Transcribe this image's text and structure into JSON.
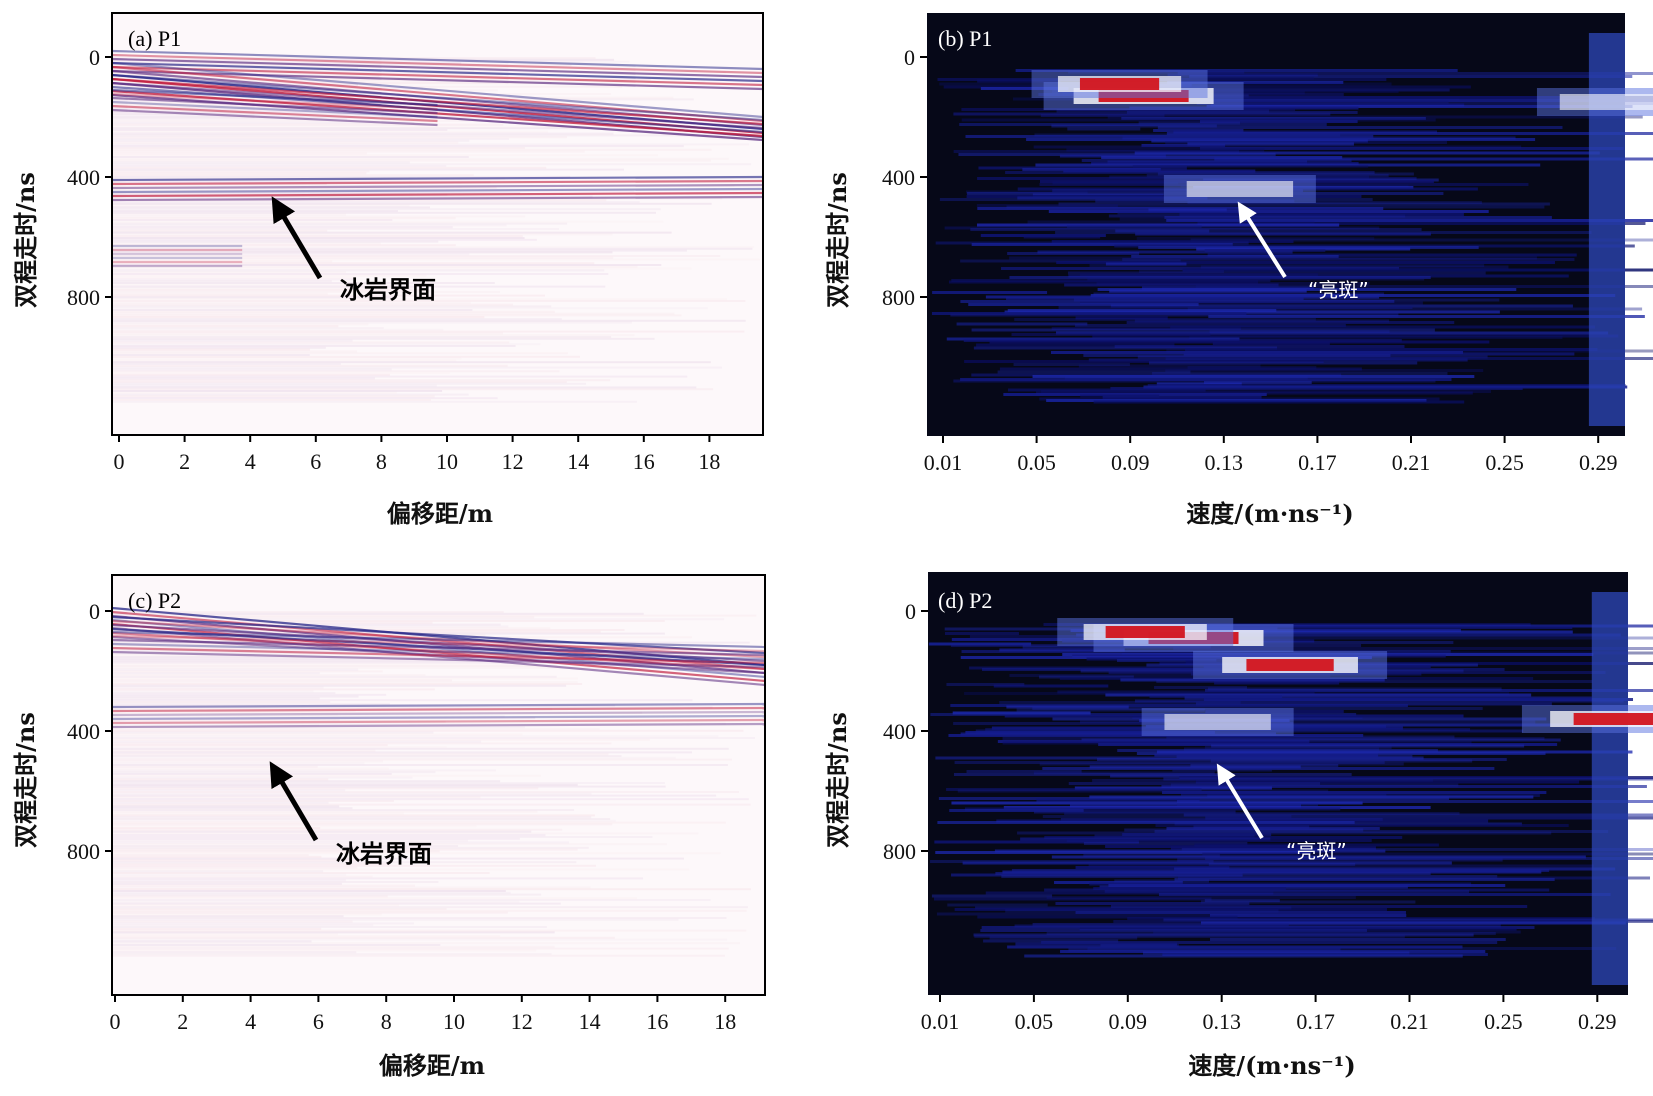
{
  "chart_data": [
    {
      "panel": "a",
      "type": "heatmap",
      "title": "(a) P1",
      "xlabel": "偏移距/m",
      "ylabel": "双程走时/ns",
      "xticks": [
        "0",
        "2",
        "4",
        "6",
        "8",
        "10",
        "12",
        "14",
        "16",
        "18"
      ],
      "yticks": [
        "0",
        "400",
        "800"
      ],
      "xlim": [
        0,
        20
      ],
      "ylim": [
        0,
        1200
      ],
      "colormap": "white-red-blue",
      "annotation": "冰岩界面",
      "reflectors": [
        {
          "x0": 0,
          "t0": 20,
          "x1": 20,
          "t1": 80,
          "strength": 0.9
        },
        {
          "x0": 0,
          "t0": 60,
          "x1": 20,
          "t1": 240,
          "strength": 1.0
        },
        {
          "x0": 0,
          "t0": 100,
          "x1": 20,
          "t1": 250,
          "strength": 0.9
        },
        {
          "x0": 0,
          "t0": 150,
          "x1": 10,
          "t1": 200,
          "strength": 0.7
        },
        {
          "x0": 0,
          "t0": 450,
          "x1": 20,
          "t1": 440,
          "strength": 0.8
        },
        {
          "x0": 0,
          "t0": 670,
          "x1": 4,
          "t1": 670,
          "strength": 0.4
        }
      ]
    },
    {
      "panel": "b",
      "type": "heatmap",
      "title": "(b) P1",
      "xlabel": "速度/(m·ns⁻¹)",
      "ylabel": "双程走时/ns",
      "xticks": [
        "0.01",
        "0.05",
        "0.09",
        "0.13",
        "0.17",
        "0.21",
        "0.25",
        "0.29"
      ],
      "yticks": [
        "0",
        "400",
        "800"
      ],
      "xlim": [
        0.01,
        0.3
      ],
      "ylim": [
        0,
        1200
      ],
      "colormap": "black-blue-white-red",
      "annotation": "“亮斑”",
      "bright_spots": [
        {
          "v": 0.1,
          "t": 130,
          "level": 1.0
        },
        {
          "v": 0.09,
          "t": 90,
          "level": 0.8
        },
        {
          "v": 0.14,
          "t": 440,
          "level": 0.6
        },
        {
          "v": 0.295,
          "t": 150,
          "level": 0.6
        }
      ]
    },
    {
      "panel": "c",
      "type": "heatmap",
      "title": "(c) P2",
      "xlabel": "偏移距/m",
      "ylabel": "双程走时/ns",
      "xticks": [
        "0",
        "2",
        "4",
        "6",
        "8",
        "10",
        "12",
        "14",
        "16",
        "18"
      ],
      "yticks": [
        "0",
        "400",
        "800"
      ],
      "xlim": [
        0,
        19
      ],
      "ylim": [
        0,
        1000
      ],
      "colormap": "white-red-blue",
      "annotation": "冰岩界面",
      "reflectors": [
        {
          "x0": 0,
          "t0": 30,
          "x1": 19,
          "t1": 220,
          "strength": 1.0
        },
        {
          "x0": 0,
          "t0": 60,
          "x1": 19,
          "t1": 180,
          "strength": 0.9
        },
        {
          "x0": 0,
          "t0": 110,
          "x1": 19,
          "t1": 160,
          "strength": 0.7
        },
        {
          "x0": 0,
          "t0": 360,
          "x1": 19,
          "t1": 350,
          "strength": 0.6
        }
      ]
    },
    {
      "panel": "d",
      "type": "heatmap",
      "title": "(d) P2",
      "xlabel": "速度/(m·ns⁻¹)",
      "ylabel": "双程走时/ns",
      "xticks": [
        "0.01",
        "0.05",
        "0.09",
        "0.13",
        "0.17",
        "0.21",
        "0.25",
        "0.29"
      ],
      "yticks": [
        "0",
        "400",
        "800"
      ],
      "xlim": [
        0.01,
        0.3
      ],
      "ylim": [
        0,
        1000
      ],
      "colormap": "black-blue-white-red",
      "annotation": "“亮斑”",
      "bright_spots": [
        {
          "v": 0.12,
          "t": 90,
          "level": 1.0
        },
        {
          "v": 0.16,
          "t": 180,
          "level": 0.95
        },
        {
          "v": 0.1,
          "t": 70,
          "level": 0.8
        },
        {
          "v": 0.13,
          "t": 370,
          "level": 0.6
        },
        {
          "v": 0.295,
          "t": 360,
          "level": 0.9
        }
      ]
    }
  ]
}
